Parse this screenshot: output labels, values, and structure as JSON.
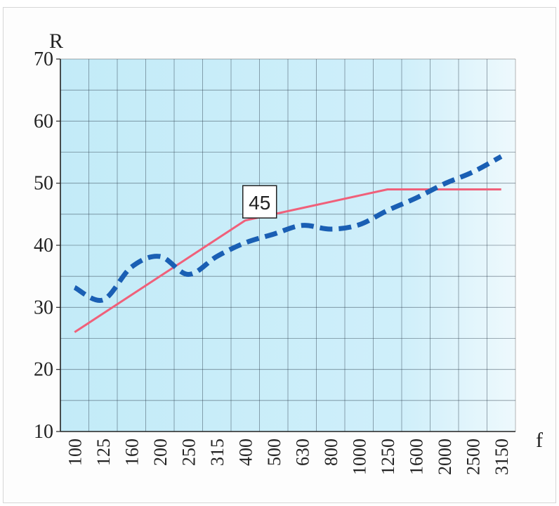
{
  "chart_data": {
    "type": "line",
    "ylabel": "R",
    "xlabel": "f",
    "ylim": [
      10,
      70
    ],
    "yticks": [
      10,
      20,
      30,
      40,
      50,
      60,
      70
    ],
    "categories": [
      "100",
      "125",
      "160",
      "200",
      "250",
      "315",
      "400",
      "500",
      "630",
      "800",
      "1000",
      "1250",
      "1600",
      "2000",
      "2500",
      "3150"
    ],
    "grid": true,
    "annotation": {
      "text": "45",
      "x": "500",
      "y": 47
    },
    "series": [
      {
        "values": [
          26,
          29,
          32,
          35,
          38,
          41,
          44,
          45,
          46,
          47,
          48,
          49,
          49,
          49,
          49,
          49
        ],
        "color": "#f0607a",
        "style": "solid"
      },
      {
        "values": [
          33.2,
          31.2,
          36.5,
          38.2,
          35.3,
          38.2,
          40.4,
          41.8,
          43.2,
          42.6,
          43.3,
          45.6,
          47.6,
          49.9,
          51.8,
          54.3
        ],
        "color": "#1a5fb4",
        "style": "dashed"
      }
    ],
    "colors": {
      "plot_background": "#c7ecf8",
      "grid": "#2a3a4a"
    }
  }
}
